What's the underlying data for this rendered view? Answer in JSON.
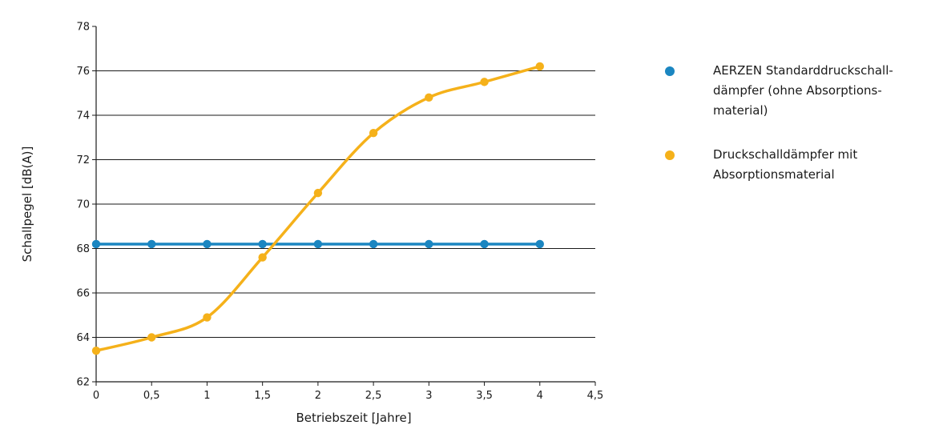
{
  "chart_data": {
    "type": "line",
    "xlabel": "Betriebszeit [Jahre]",
    "ylabel": "Schallpegel [dB(A)]",
    "xlim": [
      0,
      4.5
    ],
    "ylim": [
      62,
      78
    ],
    "x_ticks": [
      0,
      0.5,
      1,
      1.5,
      2,
      2.5,
      3,
      3.5,
      4,
      4.5
    ],
    "x_tick_labels": [
      "0",
      "0,5",
      "1",
      "1,5",
      "2",
      "2,5",
      "3",
      "3,5",
      "4",
      "4,5"
    ],
    "y_ticks": [
      62,
      64,
      66,
      68,
      70,
      72,
      74,
      76,
      78
    ],
    "y_tick_labels": [
      "62",
      "64",
      "66",
      "68",
      "70",
      "72",
      "74",
      "76",
      "78"
    ],
    "grid": "horizontal",
    "legend_position": "right",
    "series": [
      {
        "name": "AERZEN Standarddruckschall-dämpfer (ohne Absorptions-material)",
        "color": "#1b86c1",
        "x": [
          0,
          0.5,
          1,
          1.5,
          2,
          2.5,
          3,
          3.5,
          4
        ],
        "values": [
          68.2,
          68.2,
          68.2,
          68.2,
          68.2,
          68.2,
          68.2,
          68.2,
          68.2
        ]
      },
      {
        "name": "Druckschalldämpfer mit Absorptionsmaterial",
        "color": "#f5b11a",
        "x": [
          0,
          0.5,
          1,
          1.5,
          2,
          2.5,
          3,
          3.5,
          4
        ],
        "values": [
          63.4,
          64.0,
          64.9,
          67.6,
          70.5,
          73.2,
          74.8,
          75.5,
          76.2
        ]
      }
    ]
  }
}
